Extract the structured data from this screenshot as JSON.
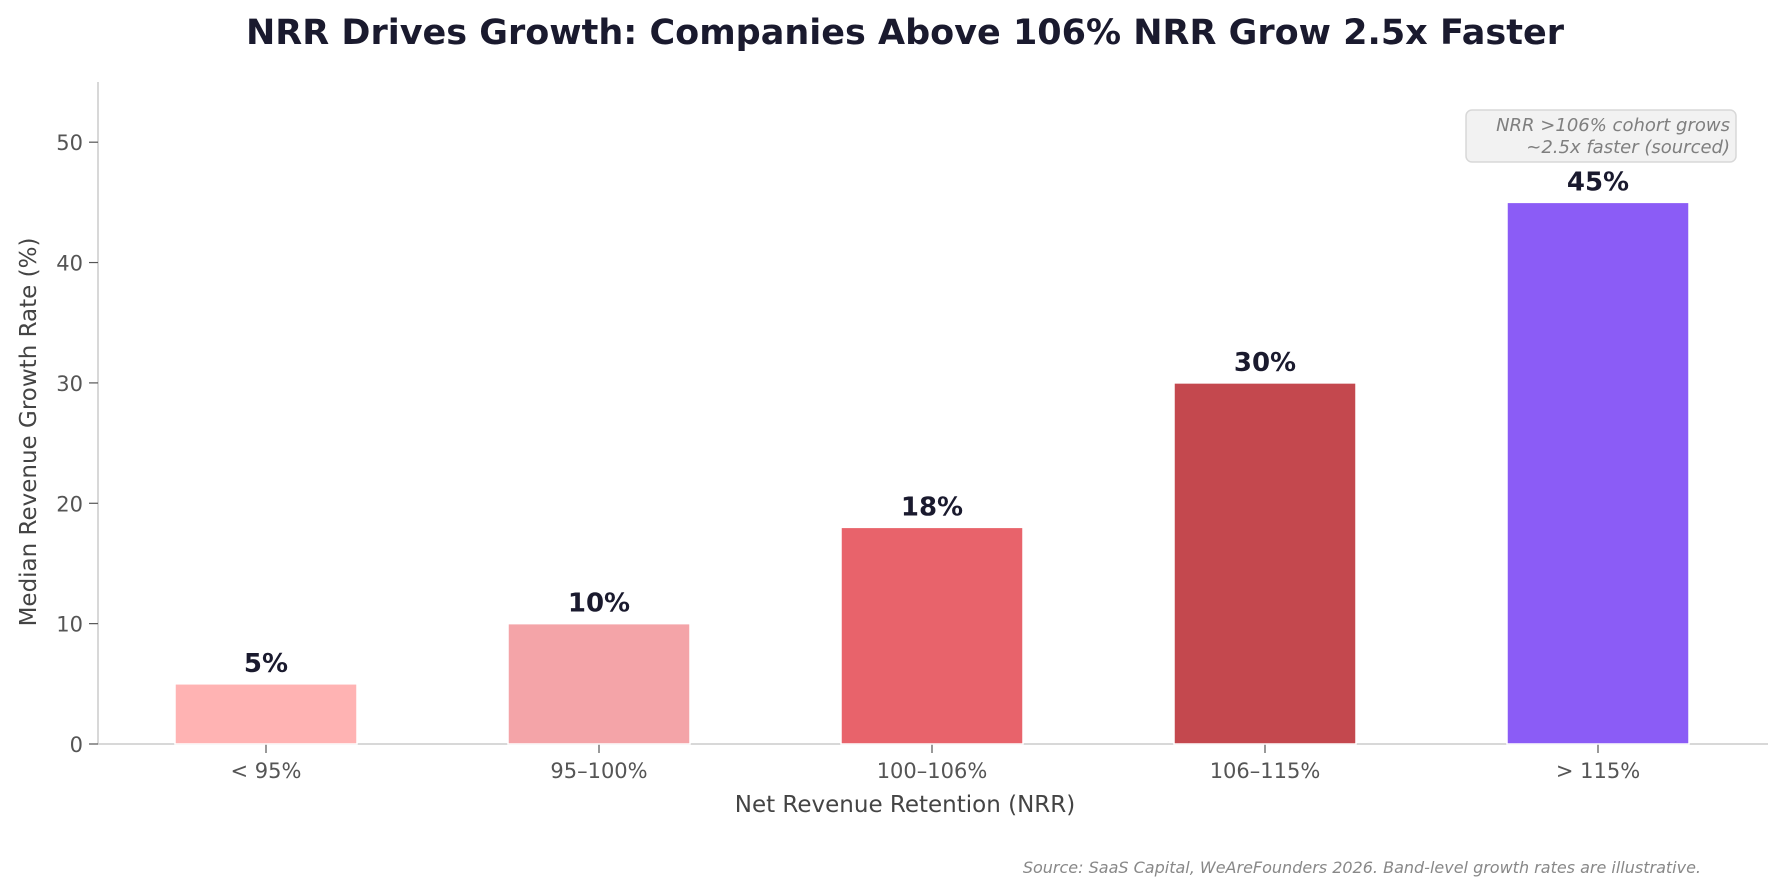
{
  "chart_data": {
    "type": "bar",
    "title": "NRR Drives Growth: Companies Above 106% NRR Grow 2.5x Faster",
    "xlabel": "Net Revenue Retention (NRR)",
    "ylabel": "Median Revenue Growth Rate (%)",
    "categories": [
      "< 95%",
      "95–100%",
      "100–106%",
      "106–115%",
      "> 115%"
    ],
    "values": [
      5,
      10,
      18,
      30,
      45
    ],
    "data_labels": [
      "5%",
      "10%",
      "18%",
      "30%",
      "45%"
    ],
    "colors": [
      "#ffb3b3",
      "#f4a4a8",
      "#e8636b",
      "#c4484e",
      "#8b5cf6"
    ],
    "ylim": [
      0,
      55
    ],
    "yticks": [
      0,
      10,
      20,
      30,
      40,
      50
    ],
    "grid": false,
    "legend": "none",
    "annotation": {
      "lines": [
        "NRR >106% cohort grows",
        "~2.5x faster (sourced)"
      ],
      "placement": "top-right"
    }
  },
  "footer": {
    "source": "Source: SaaS Capital, WeAreFounders 2026. Band-level growth rates are illustrative."
  }
}
